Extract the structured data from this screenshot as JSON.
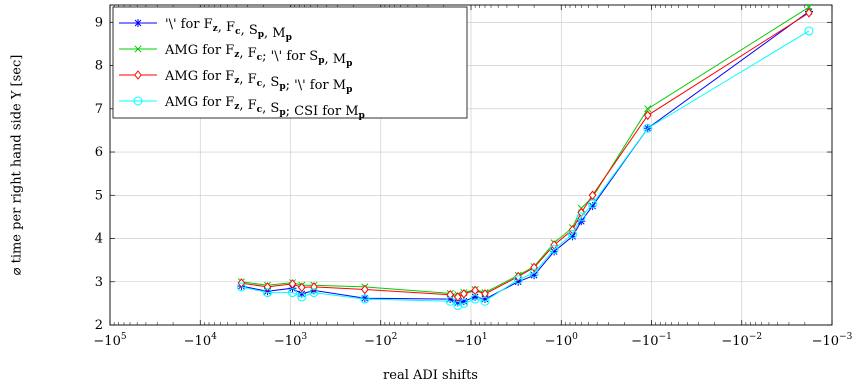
{
  "chart_data": {
    "type": "line",
    "xlabel": "real ADI shifts",
    "ylabel": "⌀ time per right hand side Y [sec]",
    "x_scale": "log (negative shifts)",
    "x_ticks": [
      {
        "value": -100000,
        "label": "−10^5"
      },
      {
        "value": -10000,
        "label": "−10^4"
      },
      {
        "value": -1000,
        "label": "−10^3"
      },
      {
        "value": -100,
        "label": "−10^2"
      },
      {
        "value": -10,
        "label": "−10^1"
      },
      {
        "value": -1,
        "label": "−10^0"
      },
      {
        "value": -0.1,
        "label": "−10^−1"
      },
      {
        "value": -0.01,
        "label": "−10^−2"
      },
      {
        "value": -0.001,
        "label": "−10^−3"
      }
    ],
    "y_ticks": [
      2,
      3,
      4,
      5,
      6,
      7,
      8,
      9
    ],
    "ylim": [
      2,
      9.4
    ],
    "grid": true,
    "legend_position": "top-left",
    "x": [
      -3500,
      -1800,
      -950,
      -750,
      -550,
      -150,
      -17,
      -14,
      -12,
      -9,
      -7,
      -3,
      -2,
      -1.2,
      -0.75,
      -0.6,
      -0.45,
      -0.11,
      -0.0018
    ],
    "series": [
      {
        "name": "'\\' for F_z, F_c, S_p, M_p",
        "color": "#0000ff",
        "marker": "asterisk",
        "values": [
          2.9,
          2.78,
          2.85,
          2.72,
          2.8,
          2.62,
          2.6,
          2.52,
          2.55,
          2.65,
          2.6,
          3.0,
          3.15,
          3.7,
          4.05,
          4.4,
          4.75,
          6.55,
          9.25
        ]
      },
      {
        "name": "AMG for F_z, F_c; '\\' for S_p, M_p",
        "color": "#00cc00",
        "marker": "x",
        "values": [
          3.0,
          2.92,
          2.98,
          2.92,
          2.92,
          2.88,
          2.73,
          2.7,
          2.75,
          2.82,
          2.75,
          3.15,
          3.35,
          3.9,
          4.25,
          4.7,
          4.95,
          7.0,
          9.35
        ]
      },
      {
        "name": "AMG for F_z, F_c, S_p; '\\' for M_p",
        "color": "#ff0000",
        "marker": "diamond",
        "values": [
          2.97,
          2.88,
          2.95,
          2.87,
          2.88,
          2.82,
          2.7,
          2.65,
          2.72,
          2.8,
          2.72,
          3.12,
          3.33,
          3.85,
          4.2,
          4.6,
          5.0,
          6.85,
          9.22
        ]
      },
      {
        "name": "AMG for F_z, F_c, S_p; CSI for M_p",
        "color": "#00ffff",
        "marker": "circle",
        "values": [
          2.88,
          2.75,
          2.75,
          2.65,
          2.75,
          2.6,
          2.55,
          2.45,
          2.5,
          2.6,
          2.55,
          3.05,
          3.2,
          3.75,
          4.1,
          4.5,
          4.8,
          6.55,
          8.8
        ]
      }
    ]
  }
}
